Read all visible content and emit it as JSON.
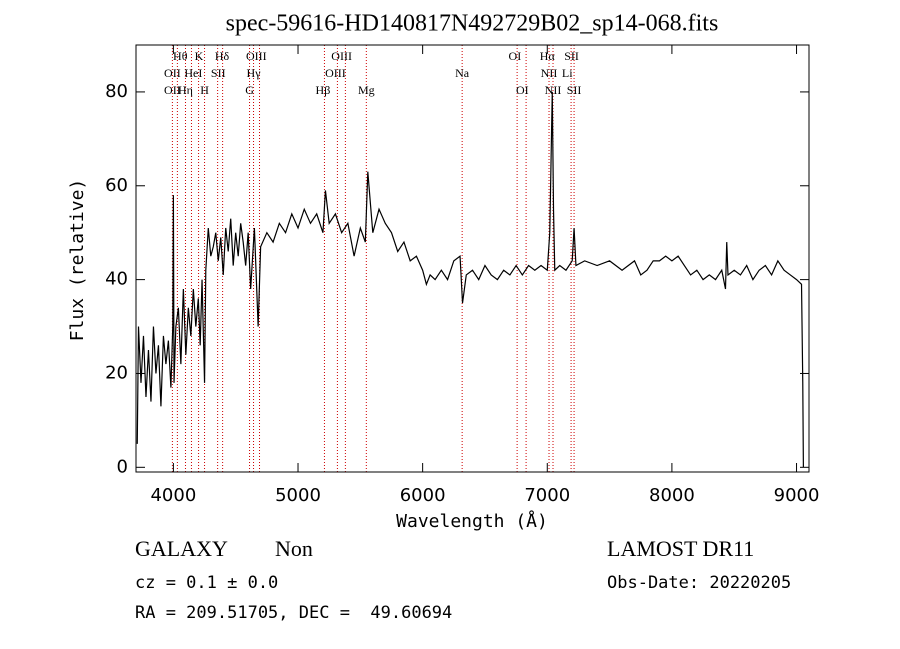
{
  "chart_data": {
    "type": "line",
    "title": "spec-59616-HD140817N492729B02_sp14-068.fits",
    "x_label": "Wavelength (Å)",
    "y_label": "Flux (relative)",
    "xlim": [
      3700,
      9100
    ],
    "ylim": [
      -1,
      90
    ],
    "xticks": [
      4000,
      5000,
      6000,
      7000,
      8000,
      9000
    ],
    "yticks": [
      0,
      20,
      40,
      60,
      80
    ],
    "color": "#000000",
    "line_color": "#cc0000",
    "x": [
      3710,
      3720,
      3740,
      3760,
      3780,
      3800,
      3820,
      3840,
      3860,
      3880,
      3900,
      3920,
      3940,
      3960,
      3980,
      3995,
      4000,
      4005,
      4020,
      4040,
      4060,
      4080,
      4100,
      4120,
      4140,
      4160,
      4180,
      4200,
      4215,
      4230,
      4250,
      4260,
      4280,
      4300,
      4320,
      4340,
      4360,
      4380,
      4400,
      4420,
      4440,
      4460,
      4480,
      4500,
      4520,
      4540,
      4560,
      4580,
      4600,
      4620,
      4650,
      4680,
      4700,
      4750,
      4800,
      4850,
      4900,
      4950,
      5000,
      5050,
      5100,
      5150,
      5200,
      5220,
      5250,
      5300,
      5350,
      5400,
      5450,
      5500,
      5540,
      5560,
      5600,
      5650,
      5700,
      5750,
      5800,
      5850,
      5900,
      5950,
      6000,
      6030,
      6060,
      6100,
      6150,
      6200,
      6250,
      6300,
      6320,
      6350,
      6400,
      6450,
      6500,
      6550,
      6600,
      6650,
      6700,
      6750,
      6800,
      6850,
      6900,
      6950,
      7000,
      7020,
      7030,
      7040,
      7050,
      7060,
      7100,
      7150,
      7200,
      7215,
      7230,
      7300,
      7400,
      7500,
      7600,
      7700,
      7750,
      7800,
      7850,
      7900,
      7950,
      8000,
      8050,
      8100,
      8150,
      8200,
      8250,
      8300,
      8350,
      8400,
      8430,
      8440,
      8450,
      8500,
      8550,
      8600,
      8650,
      8700,
      8750,
      8800,
      8850,
      8900,
      8950,
      9000,
      9040,
      9050,
      9055
    ],
    "values": [
      5,
      30,
      18,
      28,
      15,
      25,
      14,
      30,
      20,
      26,
      13,
      28,
      22,
      27,
      17,
      30,
      58,
      18,
      30,
      34,
      22,
      38,
      24,
      34,
      28,
      38,
      30,
      36,
      26,
      40,
      18,
      42,
      51,
      45,
      47,
      50,
      44,
      49,
      41,
      51,
      46,
      53,
      43,
      50,
      45,
      52,
      48,
      43,
      50,
      38,
      51,
      30,
      47,
      50,
      48,
      52,
      50,
      54,
      51,
      55,
      52,
      54,
      50,
      59,
      52,
      54,
      50,
      52,
      45,
      51,
      48,
      63,
      50,
      55,
      52,
      50,
      46,
      48,
      44,
      45,
      42,
      39,
      41,
      40,
      42,
      40,
      44,
      45,
      35,
      41,
      42,
      40,
      43,
      41,
      40,
      42,
      41,
      43,
      41,
      43,
      42,
      43,
      42,
      50,
      65,
      80,
      55,
      42,
      43,
      42,
      44,
      51,
      43,
      44,
      43,
      44,
      42,
      44,
      41,
      42,
      44,
      44,
      45,
      44,
      45,
      43,
      41,
      42,
      40,
      41,
      40,
      42,
      38,
      48,
      41,
      42,
      41,
      43,
      40,
      42,
      43,
      41,
      44,
      42,
      41,
      40,
      39,
      18,
      0
    ],
    "lines": [
      3992,
      4032,
      4097,
      4145,
      4202,
      4250,
      4355,
      4395,
      4611,
      4643,
      4691,
      5212,
      5316,
      5380,
      5548,
      6317,
      6758,
      6830,
      7014,
      7046,
      7191,
      7215
    ],
    "line_labels": [
      [
        {
          "label": "Hθ",
          "x": 4055
        },
        {
          "label": "K",
          "x": 4205
        },
        {
          "label": "Hδ",
          "x": 4390
        },
        {
          "label": "OIII",
          "x": 4665
        },
        {
          "label": "OIII",
          "x": 5350
        },
        {
          "label": "OI",
          "x": 6740
        },
        {
          "label": "Hα",
          "x": 7000
        },
        {
          "label": "SII",
          "x": 7195
        }
      ],
      [
        {
          "label": "OII",
          "x": 3992
        },
        {
          "label": "HeI",
          "x": 4160
        },
        {
          "label": "SII",
          "x": 4360
        },
        {
          "label": "Hγ",
          "x": 4643
        },
        {
          "label": "OIII",
          "x": 5300
        },
        {
          "label": "Na",
          "x": 6317
        },
        {
          "label": "NII",
          "x": 7014
        },
        {
          "label": "Li",
          "x": 7160
        }
      ],
      [
        {
          "label": "OII",
          "x": 3992
        },
        {
          "label": "Hη",
          "x": 4097
        },
        {
          "label": "H",
          "x": 4250
        },
        {
          "label": "G",
          "x": 4611
        },
        {
          "label": "Hβ",
          "x": 5200
        },
        {
          "label": "Mg",
          "x": 5548
        },
        {
          "label": "OI",
          "x": 6800
        },
        {
          "label": "NII",
          "x": 7046
        },
        {
          "label": "SII",
          "x": 7215
        }
      ]
    ],
    "info": {
      "class": "GALAXY",
      "subclass": "Non",
      "survey": "LAMOST DR11",
      "cz": "cz = 0.1 ± 0.0",
      "date": "Obs-Date: 20220205",
      "coords": "RA = 209.51705, DEC =  49.60694"
    }
  }
}
